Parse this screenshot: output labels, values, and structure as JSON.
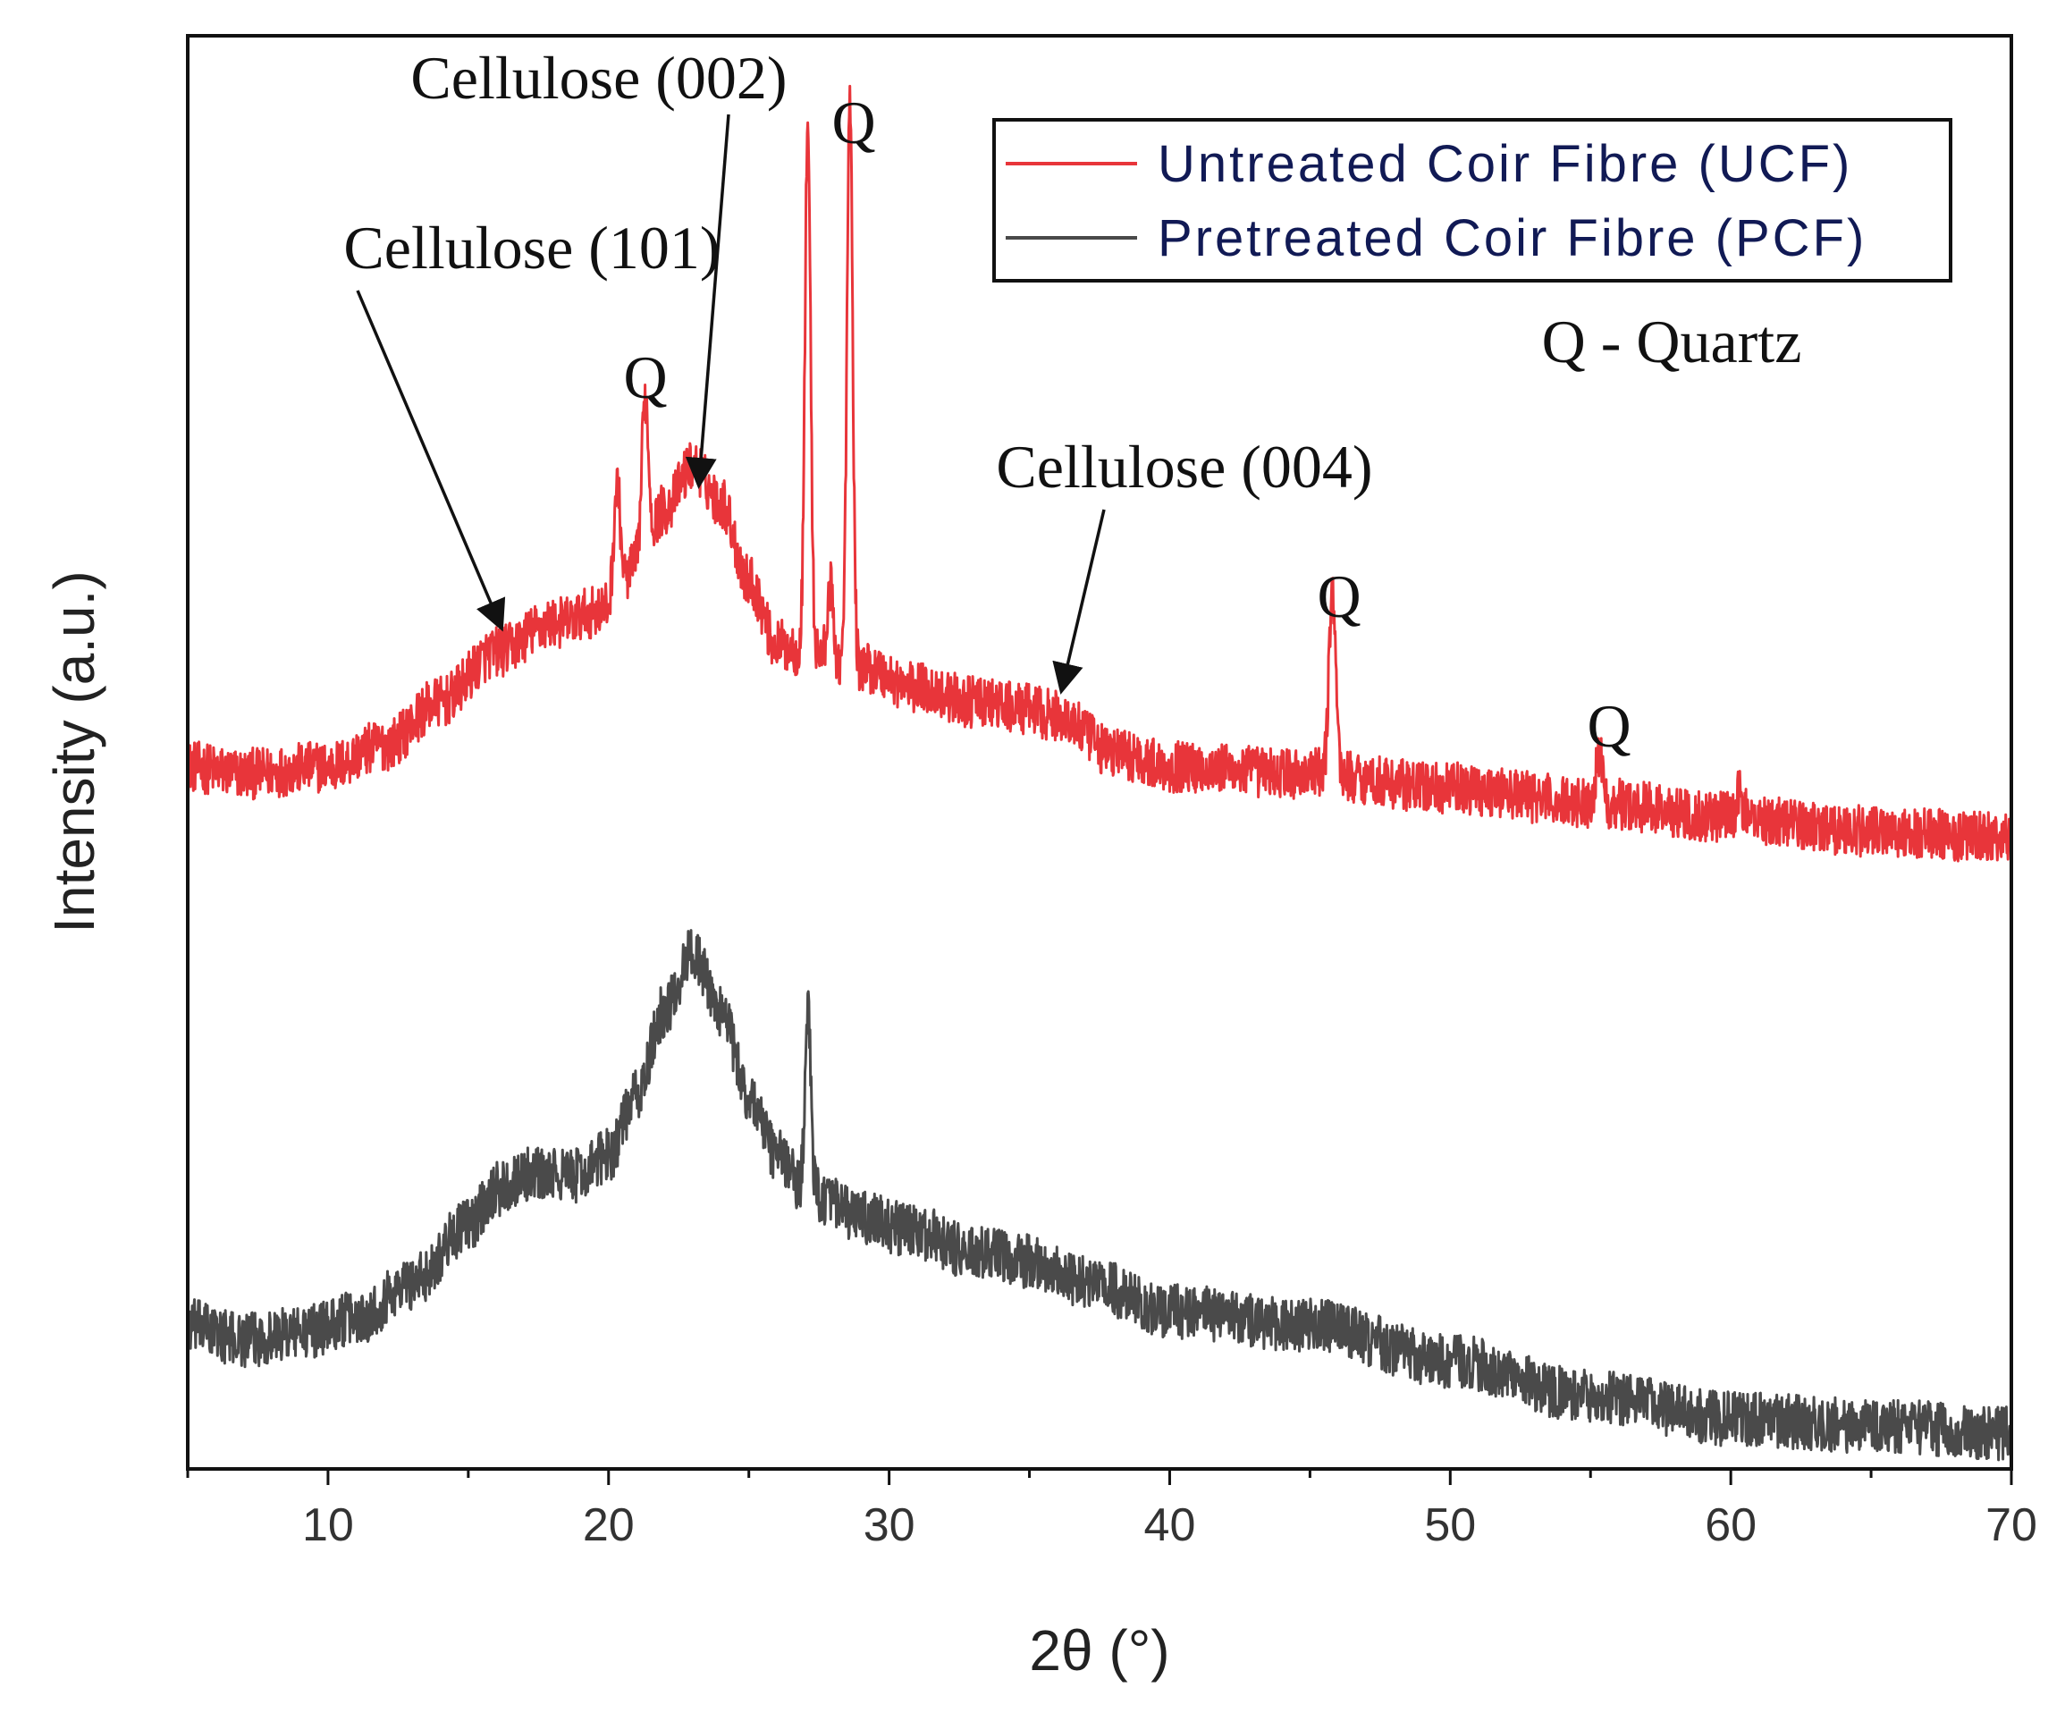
{
  "chart_data": {
    "type": "line",
    "title": "",
    "xlabel": "2θ (°)",
    "ylabel": "Intensity (a.u.)",
    "xlim": [
      5,
      70
    ],
    "ylim": [
      0,
      100
    ],
    "x_ticks": [
      10,
      20,
      30,
      40,
      50,
      60,
      70
    ],
    "y_ticks_shown": false,
    "legend_position": "top-right",
    "legend_note": "Q - Quartz",
    "series": [
      {
        "name": "Untreated Coir Fibre (UCF)",
        "color": "#e8353a",
        "baseline_points": [
          [
            5,
            49
          ],
          [
            7,
            48.5
          ],
          [
            10,
            49
          ],
          [
            12,
            50.5
          ],
          [
            14,
            53.5
          ],
          [
            16,
            57
          ],
          [
            18,
            59
          ],
          [
            20,
            60
          ],
          [
            21,
            63
          ],
          [
            22,
            67
          ],
          [
            23,
            70
          ],
          [
            24,
            67.5
          ],
          [
            25,
            62
          ],
          [
            26,
            57.5
          ],
          [
            27,
            57
          ],
          [
            29,
            56
          ],
          [
            31,
            54.5
          ],
          [
            33,
            53.5
          ],
          [
            35,
            53
          ],
          [
            36,
            52.5
          ],
          [
            38,
            50
          ],
          [
            40,
            49
          ],
          [
            45,
            48.5
          ],
          [
            50,
            47.5
          ],
          [
            55,
            46.5
          ],
          [
            60,
            45.5
          ],
          [
            65,
            44.5
          ],
          [
            70,
            44
          ]
        ],
        "peaks": [
          {
            "x": 20.3,
            "height": 8,
            "width": 0.12,
            "label": ""
          },
          {
            "x": 21.3,
            "height": 11,
            "width": 0.12,
            "label": "Q"
          },
          {
            "x": 27.1,
            "height": 37,
            "width": 0.1,
            "label": ""
          },
          {
            "x": 28.6,
            "height": 39.5,
            "width": 0.1,
            "label": "Q"
          },
          {
            "x": 27.9,
            "height": 5,
            "width": 0.1,
            "label": ""
          },
          {
            "x": 45.8,
            "height": 13,
            "width": 0.12,
            "label": "Q"
          },
          {
            "x": 55.3,
            "height": 3.5,
            "width": 0.12,
            "label": "Q"
          },
          {
            "x": 60.3,
            "height": 1.5,
            "width": 0.12,
            "label": ""
          }
        ],
        "noise_amplitude": 1.8
      },
      {
        "name": "Pretreated Coir Fibre (PCF)",
        "color": "#4a4a4a",
        "baseline_points": [
          [
            5,
            10
          ],
          [
            7,
            9
          ],
          [
            9,
            9.5
          ],
          [
            11,
            10.5
          ],
          [
            13,
            13
          ],
          [
            15,
            17
          ],
          [
            16,
            19.5
          ],
          [
            17,
            20.5
          ],
          [
            19,
            20.5
          ],
          [
            20,
            22
          ],
          [
            21,
            26
          ],
          [
            22,
            32
          ],
          [
            23,
            36
          ],
          [
            24,
            32
          ],
          [
            25,
            26
          ],
          [
            26,
            22
          ],
          [
            27,
            19.5
          ],
          [
            29,
            17.5
          ],
          [
            31,
            16.5
          ],
          [
            33,
            15
          ],
          [
            35,
            14.5
          ],
          [
            37,
            13
          ],
          [
            40,
            11
          ],
          [
            45,
            10
          ],
          [
            50,
            7.5
          ],
          [
            55,
            5
          ],
          [
            60,
            3.5
          ],
          [
            65,
            3
          ],
          [
            70,
            2.5
          ]
        ],
        "peaks": [
          {
            "x": 27.1,
            "height": 13,
            "width": 0.1,
            "label": ""
          }
        ],
        "noise_amplitude": 1.9
      }
    ],
    "annotations": [
      {
        "text": "Cellulose (101)",
        "x": 16,
        "y": 59
      },
      {
        "text": "Cellulose (002)",
        "x": 23,
        "y": 70
      },
      {
        "text": "Cellulose (004)",
        "x": 36,
        "y": 53
      },
      {
        "text": "Q",
        "x": 21.3,
        "y": 75
      },
      {
        "text": "Q",
        "x": 28.6,
        "y": 97
      },
      {
        "text": "Q",
        "x": 45.8,
        "y": 63
      },
      {
        "text": "Q",
        "x": 55.3,
        "y": 52
      }
    ]
  }
}
